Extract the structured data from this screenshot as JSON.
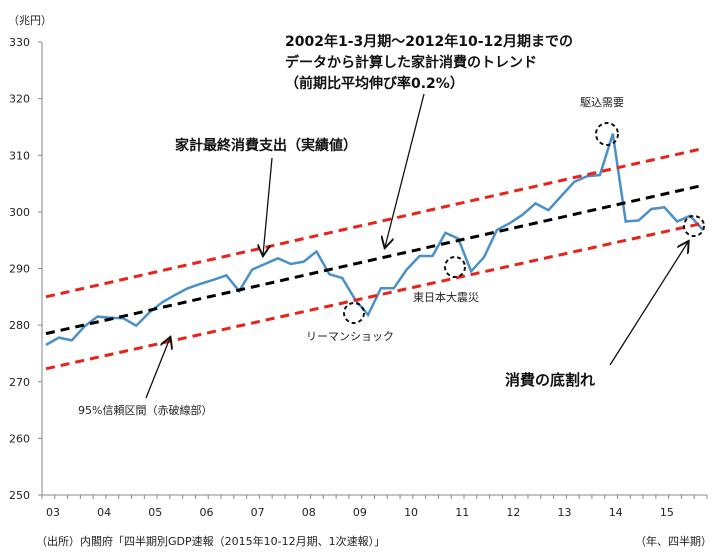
{
  "chart_data": {
    "type": "line",
    "ylabel": "（兆円）",
    "xlabel": "（年、四半期）",
    "source": "（出所）内閣府「四半期別GDP速報（2015年10-12月期、1次速報）」",
    "ylim": [
      250,
      330
    ],
    "yticks": [
      330,
      320,
      310,
      300,
      290,
      280,
      270,
      260,
      250
    ],
    "xtick_labels": [
      "03",
      "04",
      "05",
      "06",
      "07",
      "08",
      "09",
      "10",
      "11",
      "12",
      "13",
      "14",
      "15"
    ],
    "x_start": "2003Q1",
    "x_end": "2015Q4",
    "grid": false,
    "series": [
      {
        "name": "家計最終消費支出（実績値）",
        "color": "#4a90c8",
        "style": "solid",
        "values": [
          276.5,
          277.8,
          277.3,
          279.8,
          281.5,
          281.3,
          281.2,
          279.9,
          282.2,
          284.0,
          285.3,
          286.5,
          287.3,
          288.0,
          288.8,
          286.0,
          289.8,
          290.8,
          291.8,
          290.8,
          291.2,
          293.0,
          289.0,
          288.3,
          284.5,
          281.8,
          286.5,
          286.5,
          289.8,
          292.2,
          292.2,
          296.3,
          295.3,
          289.5,
          292.0,
          296.8,
          298.0,
          299.5,
          301.5,
          300.3,
          302.8,
          305.3,
          306.3,
          306.5,
          313.8,
          298.3,
          298.5,
          300.5,
          300.8,
          298.3,
          299.3,
          296.8
        ]
      },
      {
        "name": "2002年1-3月期～2012年10-12月期までのデータから計算した家計消費のトレンド（前期比平均伸び率0.2%）",
        "color": "#000000",
        "style": "dashed",
        "start": 278.5,
        "end": 304.7
      },
      {
        "name": "95%信頼区間（赤破線部）上限",
        "color": "#e8231b",
        "style": "dashed",
        "start": 285.0,
        "end": 311.2
      },
      {
        "name": "95%信頼区間（赤破線部）下限",
        "color": "#e8231b",
        "style": "dashed",
        "start": 272.3,
        "end": 298.0
      }
    ],
    "annotations": {
      "trend_title": [
        "2002年1-3月期～2012年10-12月期までの",
        "データから計算した家計消費のトレンド",
        "（前期比平均伸び率0.2%）"
      ],
      "actual": "家計最終消費支出（実績値）",
      "rush": "駆込需要",
      "earthquake": "東日本大震災",
      "lehman": "リーマンショック",
      "collapse": "消費の底割れ",
      "band": "95%信頼区間（赤破線部）"
    }
  }
}
